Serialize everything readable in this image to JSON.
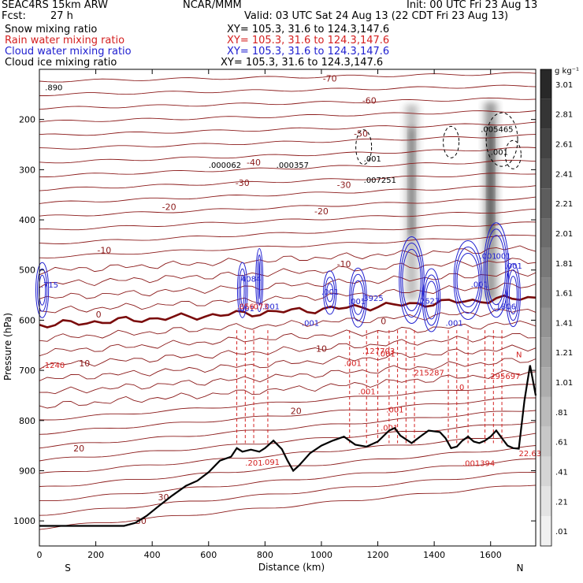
{
  "header": {
    "title": "SEAC4RS 15km ARW",
    "institution": "NCAR/MMM",
    "init": "Init: 00 UTC Fri 23 Aug 13",
    "fcst_label": "Fcst:",
    "fcst_value": "27 h",
    "valid": "Valid: 03 UTC Sat 24 Aug 13 (22 CDT Fri 23 Aug 13)",
    "fields": [
      {
        "name": "Snow mixing ratio",
        "xy": "XY= 105.3, 31.6 to 124.3,147.6",
        "color": "#000000"
      },
      {
        "name": "Rain water mixing ratio",
        "xy": "XY= 105.3, 31.6 to 124.3,147.6",
        "color": "#d42020"
      },
      {
        "name": "Cloud water mixing ratio",
        "xy": "XY= 105.3, 31.6 to 124.3,147.6",
        "color": "#2020d0"
      },
      {
        "name": "Cloud ice mixing ratio",
        "xy": "XY= 105.3, 31.6 to 124.3,147.6",
        "color": "#000000"
      }
    ]
  },
  "chart_data": {
    "type": "cross-section",
    "xlabel": "Distance (km)",
    "ylabel": "Pressure (hPa)",
    "xlim": [
      0,
      1760
    ],
    "ylim": [
      1050,
      100
    ],
    "x_ticks": [
      0,
      200,
      400,
      600,
      800,
      1000,
      1200,
      1400,
      1600
    ],
    "y_ticks": [
      200,
      300,
      400,
      500,
      600,
      700,
      800,
      900,
      1000
    ],
    "end_left": "S",
    "end_right": "N",
    "colorbar": {
      "unit": "g kg⁻¹",
      "levels": [
        "3.01",
        "2.81",
        "2.61",
        "2.41",
        "2.21",
        "2.01",
        "1.81",
        "1.61",
        "1.41",
        "1.21",
        "1.01",
        ".81",
        ".61",
        ".41",
        ".21",
        ".01"
      ]
    },
    "temperature_labels": [
      {
        "x": 1030,
        "p": 118,
        "t": "-70"
      },
      {
        "x": 1170,
        "p": 162,
        "t": "-60"
      },
      {
        "x": 1140,
        "p": 228,
        "t": "-50"
      },
      {
        "x": 760,
        "p": 285,
        "t": "-40"
      },
      {
        "x": 720,
        "p": 326,
        "t": "-30"
      },
      {
        "x": 1080,
        "p": 330,
        "t": "-30"
      },
      {
        "x": 460,
        "p": 374,
        "t": "-20"
      },
      {
        "x": 1000,
        "p": 383,
        "t": "-20"
      },
      {
        "x": 230,
        "p": 460,
        "t": "-10"
      },
      {
        "x": 1080,
        "p": 488,
        "t": "-10"
      },
      {
        "x": 210,
        "p": 588,
        "t": "0"
      },
      {
        "x": 1220,
        "p": 602,
        "t": "0"
      },
      {
        "x": 160,
        "p": 686,
        "t": "10"
      },
      {
        "x": 1000,
        "p": 657,
        "t": "10"
      },
      {
        "x": 910,
        "p": 781,
        "t": "20"
      },
      {
        "x": 140,
        "p": 855,
        "t": "20"
      },
      {
        "x": 440,
        "p": 953,
        "t": "30"
      },
      {
        "x": 360,
        "p": 1000,
        "t": "30"
      }
    ],
    "maxima": [
      {
        "x": 5,
        "p": 535,
        "text": ".715",
        "color": "#2020d0"
      },
      {
        "x": 10,
        "p": 695,
        "text": ".1240",
        "color": "#d42020"
      },
      {
        "x": 20,
        "p": 142,
        "text": ".890",
        "color": "#000000"
      },
      {
        "x": 600,
        "p": 296,
        "text": ".000062",
        "color": "#000000"
      },
      {
        "x": 840,
        "p": 296,
        "text": ".000357",
        "color": "#000000"
      },
      {
        "x": 1150,
        "p": 326,
        "text": ".007251",
        "color": "#000000"
      },
      {
        "x": 1150,
        "p": 284,
        "text": ".001",
        "color": "#000000"
      },
      {
        "x": 1565,
        "p": 225,
        "text": ".005465",
        "color": "#000000"
      },
      {
        "x": 1600,
        "p": 270,
        "text": ".001",
        "color": "#000000"
      },
      {
        "x": 715,
        "p": 523,
        "text": "4084",
        "color": "#2020d0"
      },
      {
        "x": 700,
        "p": 582,
        "text": ".001",
        "color": "#2020d0"
      },
      {
        "x": 790,
        "p": 578,
        "text": ".001",
        "color": "#2020d0"
      },
      {
        "x": 1000,
        "p": 549,
        "text": ".001",
        "color": "#2020d0"
      },
      {
        "x": 930,
        "p": 611,
        "text": ".001",
        "color": "#2020d0"
      },
      {
        "x": 1095,
        "p": 568,
        "text": ".001",
        "color": "#2020d0"
      },
      {
        "x": 1140,
        "p": 562,
        "text": ".3925",
        "color": "#2020d0"
      },
      {
        "x": 1340,
        "p": 567,
        "text": ".2627",
        "color": "#2020d0"
      },
      {
        "x": 1440,
        "p": 611,
        "text": ".001",
        "color": "#2020d0"
      },
      {
        "x": 1530,
        "p": 534,
        "text": ".001",
        "color": "#2020d0"
      },
      {
        "x": 1560,
        "p": 478,
        "text": ".001",
        "color": "#2020d0"
      },
      {
        "x": 1610,
        "p": 478,
        "text": ".001",
        "color": "#2020d0"
      },
      {
        "x": 1650,
        "p": 497,
        "text": ".001",
        "color": "#2020d0"
      },
      {
        "x": 1610,
        "p": 578,
        "text": ".1806",
        "color": "#2020d0"
      },
      {
        "x": 700,
        "p": 578,
        "text": ".056",
        "color": "#d42020"
      },
      {
        "x": 750,
        "p": 578,
        "text": ".073",
        "color": "#d42020"
      },
      {
        "x": 1145,
        "p": 667,
        "text": ".127703",
        "color": "#d42020"
      },
      {
        "x": 1080,
        "p": 691,
        "text": ".001",
        "color": "#d42020"
      },
      {
        "x": 1200,
        "p": 672,
        "text": ".001",
        "color": "#d42020"
      },
      {
        "x": 1320,
        "p": 710,
        "text": ".215287",
        "color": "#d42020"
      },
      {
        "x": 1590,
        "p": 717,
        "text": ".295697",
        "color": "#d42020"
      },
      {
        "x": 1130,
        "p": 748,
        "text": ".001",
        "color": "#d42020"
      },
      {
        "x": 1230,
        "p": 784,
        "text": ".001",
        "color": "#d42020"
      },
      {
        "x": 1210,
        "p": 820,
        "text": ".001",
        "color": "#d42020"
      },
      {
        "x": 1480,
        "p": 739,
        "text": ".0",
        "color": "#d42020"
      },
      {
        "x": 1690,
        "p": 674,
        "text": "N",
        "color": "#d42020"
      },
      {
        "x": 730,
        "p": 890,
        "text": ".201",
        "color": "#d42020"
      },
      {
        "x": 790,
        "p": 888,
        "text": ".091",
        "color": "#d42020"
      },
      {
        "x": 1500,
        "p": 891,
        "text": ".001394",
        "color": "#d42020"
      },
      {
        "x": 1700,
        "p": 871,
        "text": "22.63",
        "color": "#d42020"
      }
    ],
    "graupel_columns": [
      {
        "x": 1320,
        "p_top": 170,
        "p_bottom": 560,
        "max": 1.2
      },
      {
        "x": 1600,
        "p_top": 165,
        "p_bottom": 560,
        "max": 1.9
      }
    ],
    "terrain": {
      "x": [
        0,
        100,
        200,
        300,
        340,
        380,
        420,
        470,
        520,
        560,
        600,
        640,
        680,
        700,
        720,
        750,
        780,
        800,
        830,
        860,
        880,
        900,
        920,
        960,
        1000,
        1040,
        1080,
        1120,
        1160,
        1200,
        1240,
        1260,
        1280,
        1320,
        1350,
        1380,
        1420,
        1440,
        1460,
        1480,
        1500,
        1520,
        1540,
        1560,
        1580,
        1600,
        1620,
        1640,
        1660,
        1680,
        1700,
        1720,
        1740,
        1760
      ],
      "p": [
        1010,
        1010,
        1010,
        1010,
        1004,
        990,
        972,
        950,
        930,
        920,
        903,
        880,
        872,
        855,
        862,
        858,
        862,
        855,
        840,
        857,
        880,
        900,
        890,
        865,
        850,
        840,
        832,
        848,
        852,
        842,
        820,
        815,
        830,
        845,
        832,
        820,
        823,
        835,
        855,
        852,
        840,
        832,
        842,
        845,
        840,
        832,
        820,
        835,
        850,
        855,
        856,
        760,
        690,
        750
      ]
    }
  }
}
